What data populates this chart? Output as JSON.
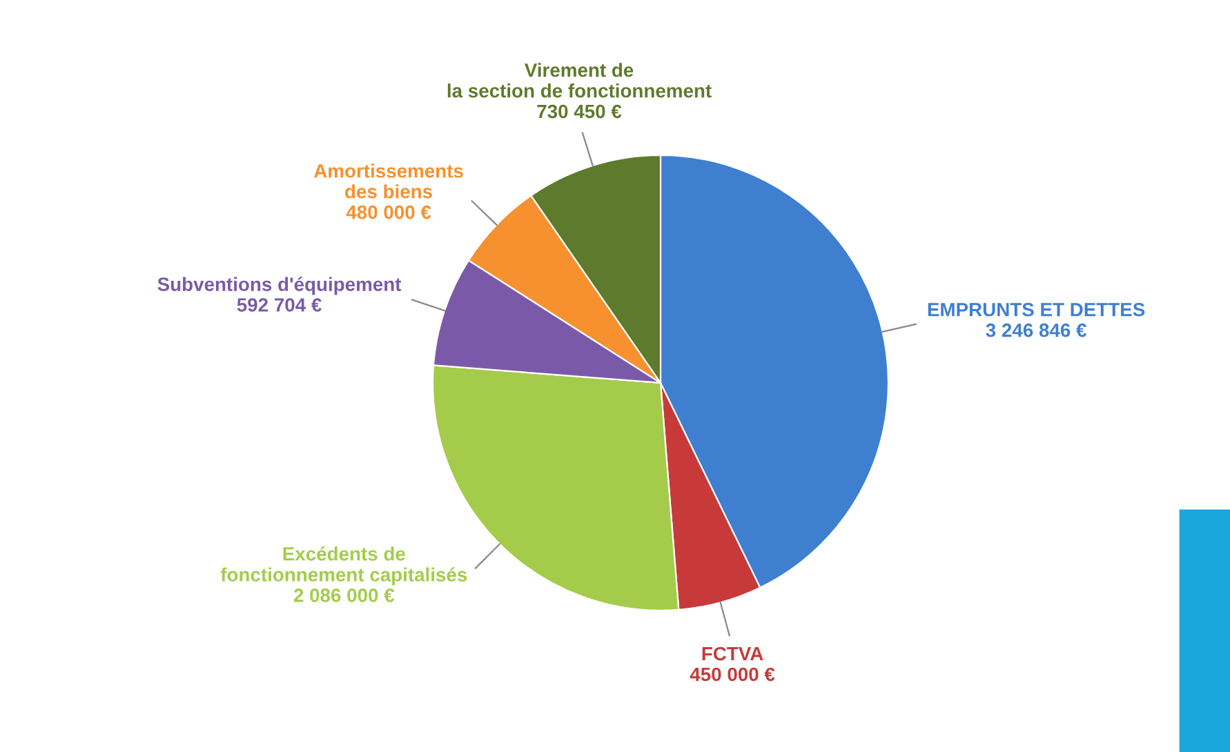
{
  "chart_data": {
    "type": "pie",
    "categories": [
      "EMPRUNTS ET DETTES",
      "FCTVA",
      "Excédents de\nfonctionnement capitalisés",
      "Subventions d'équipement",
      "Amortissements\ndes biens",
      "Virement de\nla section de fonctionnement"
    ],
    "values": [
      3246846,
      450000,
      2086000,
      592704,
      480000,
      730450
    ],
    "colors": [
      "#3f7fd0",
      "#c83a3a",
      "#a4cc4a",
      "#7a5aa8",
      "#f7902e",
      "#5e7a2c"
    ],
    "value_labels": [
      "3 246 846 €",
      "450 000 €",
      "2 086 000 €",
      "592 704 €",
      "480 000 €",
      "730 450 €"
    ],
    "legend": false
  }
}
